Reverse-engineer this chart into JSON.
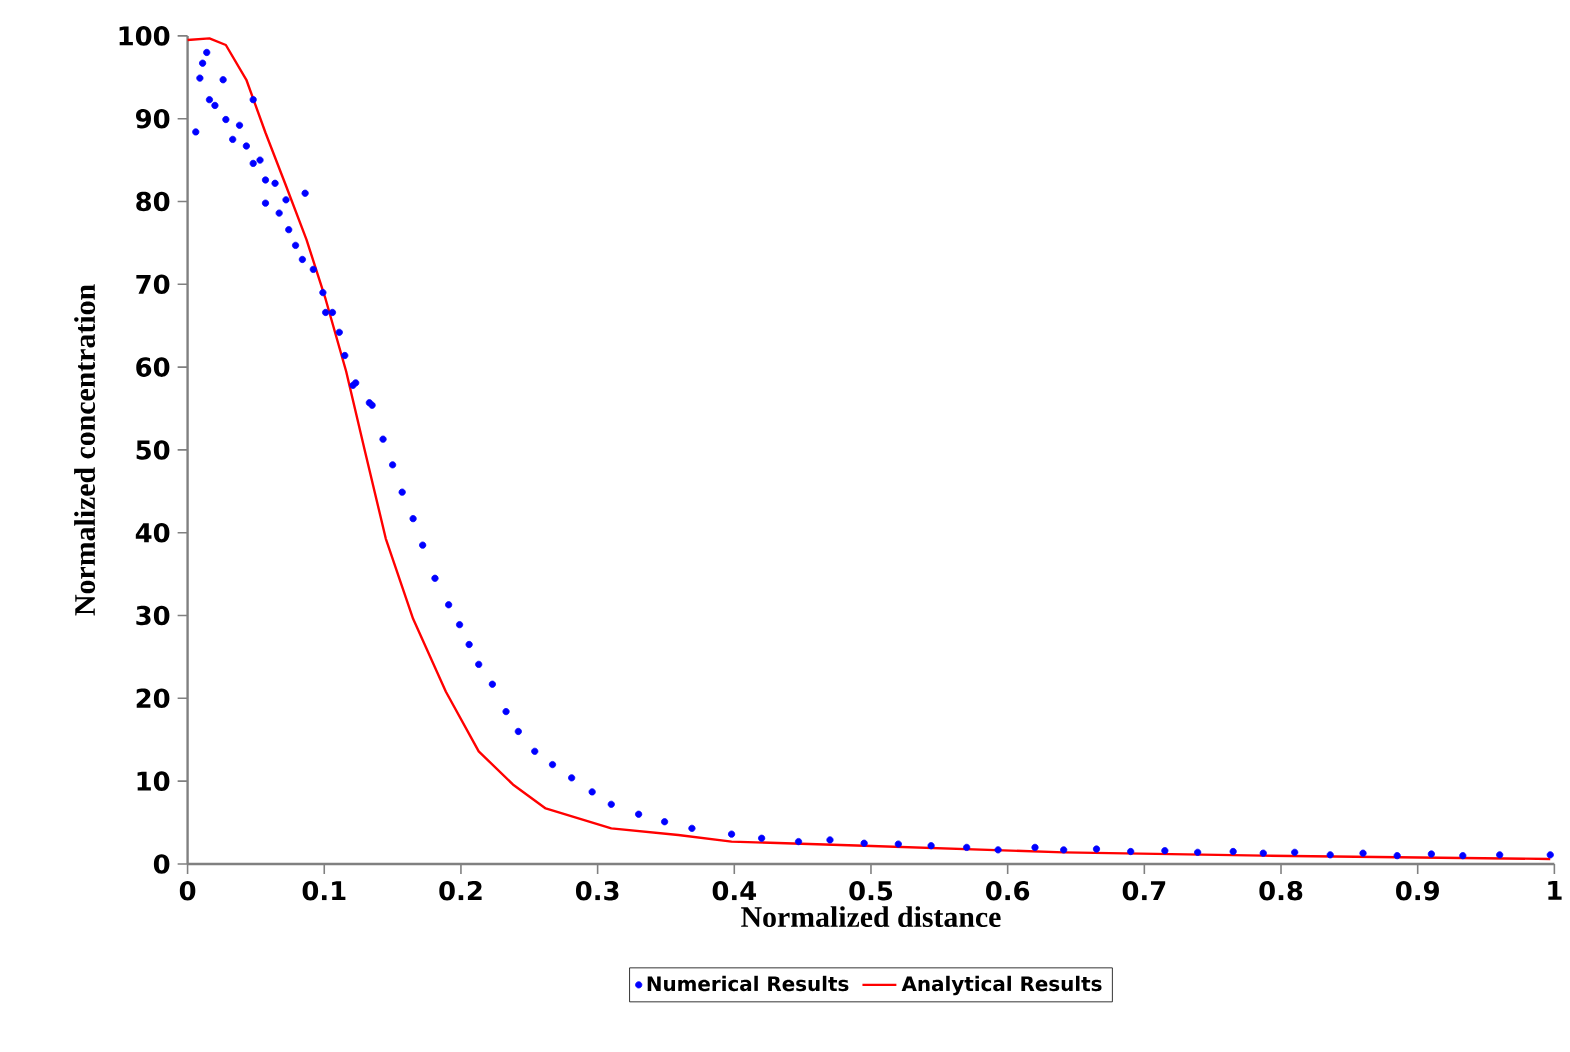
{
  "chart_data": {
    "type": "scatter",
    "xlabel": "Normalized distance",
    "ylabel": "Normalized concentration",
    "xlim": [
      0,
      1
    ],
    "ylim": [
      0,
      100
    ],
    "xticks": [
      0,
      0.1,
      0.2,
      0.3,
      0.4,
      0.5,
      0.6,
      0.7,
      0.8,
      0.9,
      1
    ],
    "yticks": [
      0,
      10,
      20,
      30,
      40,
      50,
      60,
      70,
      80,
      90,
      100
    ],
    "grid": false,
    "legend": "bottom",
    "series": [
      {
        "name": "Numerical Results",
        "marker": "circle",
        "color": "#0000ff",
        "x": [
          0.006,
          0.009,
          0.011,
          0.014,
          0.016,
          0.02,
          0.026,
          0.028,
          0.033,
          0.038,
          0.043,
          0.048,
          0.048,
          0.053,
          0.057,
          0.057,
          0.064,
          0.067,
          0.072,
          0.074,
          0.079,
          0.084,
          0.086,
          0.092,
          0.099,
          0.101,
          0.106,
          0.111,
          0.115,
          0.121,
          0.123,
          0.133,
          0.135,
          0.143,
          0.15,
          0.157,
          0.165,
          0.172,
          0.181,
          0.191,
          0.199,
          0.206,
          0.213,
          0.223,
          0.233,
          0.242,
          0.254,
          0.267,
          0.281,
          0.296,
          0.31,
          0.33,
          0.349,
          0.369,
          0.398,
          0.42,
          0.447,
          0.47,
          0.495,
          0.52,
          0.544,
          0.57,
          0.593,
          0.62,
          0.641,
          0.665,
          0.69,
          0.715,
          0.739,
          0.765,
          0.787,
          0.81,
          0.836,
          0.86,
          0.885,
          0.91,
          0.933,
          0.96,
          0.997
        ],
        "values": [
          88.4,
          94.9,
          96.7,
          98,
          92.3,
          91.6,
          94.7,
          89.9,
          87.5,
          89.2,
          86.7,
          92.3,
          84.6,
          85,
          82.6,
          79.8,
          82.2,
          78.6,
          80.2,
          76.6,
          74.7,
          73,
          81,
          71.8,
          69,
          66.6,
          66.6,
          64.2,
          61.4,
          57.8,
          58.1,
          55.7,
          55.4,
          51.3,
          48.2,
          44.9,
          41.7,
          38.5,
          34.5,
          31.3,
          28.9,
          26.5,
          24.1,
          21.7,
          18.4,
          16,
          13.6,
          12,
          10.4,
          8.7,
          7.2,
          6,
          5.1,
          4.3,
          3.6,
          3.1,
          2.7,
          2.9,
          2.5,
          2.4,
          2.2,
          2,
          1.7,
          2,
          1.7,
          1.8,
          1.5,
          1.6,
          1.4,
          1.5,
          1.3,
          1.4,
          1.1,
          1.3,
          1,
          1.2,
          1,
          1.1,
          1.1
        ]
      },
      {
        "name": "Analytical Results",
        "type": "line",
        "marker": "none",
        "line_style": "solid",
        "color": "#ff0000",
        "x": [
          0,
          0.016,
          0.028,
          0.043,
          0.057,
          0.072,
          0.087,
          0.101,
          0.116,
          0.13,
          0.145,
          0.165,
          0.189,
          0.213,
          0.238,
          0.262,
          0.31,
          0.359,
          0.398,
          0.495,
          0.641,
          0.787,
          0.997
        ],
        "values": [
          99.5,
          99.7,
          98.9,
          94.7,
          88.3,
          81.9,
          75.4,
          68.2,
          59.5,
          49.7,
          39.3,
          29.6,
          20.8,
          13.6,
          9.6,
          6.7,
          4.3,
          3.5,
          2.7,
          2.2,
          1.4,
          1,
          0.6
        ]
      }
    ]
  }
}
